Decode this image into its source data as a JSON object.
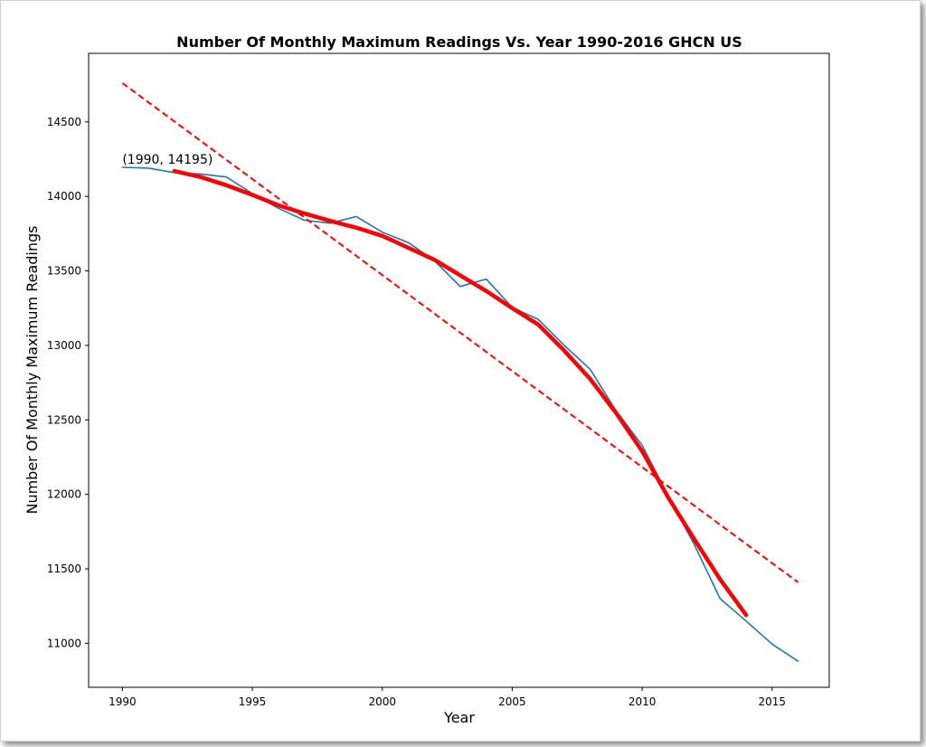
{
  "chart_data": {
    "type": "line",
    "title": "Number Of Monthly Maximum Readings Vs. Year 1990-2016 GHCN US",
    "xlabel": "Year",
    "ylabel": "Number Of Monthly Maximum Readings",
    "xlim": [
      1988.7,
      2017.2
    ],
    "ylim": [
      10705,
      14960
    ],
    "xticks": [
      1990,
      1995,
      2000,
      2005,
      2010,
      2015
    ],
    "yticks": [
      11000,
      11500,
      12000,
      12500,
      13000,
      13500,
      14000,
      14500
    ],
    "grid": false,
    "series": [
      {
        "color": "#1f77b4",
        "style": "solid",
        "x": [
          1990,
          1991,
          1992,
          1993,
          1994,
          1995,
          1996,
          1997,
          1998,
          1999,
          2000,
          2001,
          2002,
          2003,
          2004,
          2005,
          2006,
          2007,
          2008,
          2009,
          2010,
          2011,
          2012,
          2013,
          2014,
          2015,
          2016
        ],
        "y": [
          14195,
          14190,
          14160,
          14150,
          14130,
          14020,
          13920,
          13840,
          13820,
          13865,
          13760,
          13690,
          13570,
          13395,
          13445,
          13255,
          13175,
          13000,
          12840,
          12560,
          12330,
          11990,
          11665,
          11300,
          11150,
          10995,
          10880
        ]
      },
      {
        "color": "#ff0000",
        "style": "thick",
        "x": [
          1992,
          1993,
          1994,
          1995,
          1996,
          1997,
          1998,
          1999,
          2000,
          2001,
          2002,
          2003,
          2004,
          2005,
          2006,
          2007,
          2008,
          2009,
          2010,
          2011,
          2012,
          2013,
          2014
        ],
        "y": [
          14170,
          14130,
          14075,
          14010,
          13940,
          13885,
          13835,
          13790,
          13735,
          13655,
          13575,
          13470,
          13365,
          13250,
          13140,
          12965,
          12775,
          12545,
          12290,
          11980,
          11700,
          11430,
          11190
        ]
      },
      {
        "color": "#ff0000",
        "style": "dashed",
        "x": [
          1990,
          2016
        ],
        "y": [
          14760,
          11410
        ]
      }
    ],
    "annotations": [
      {
        "text": "(1990, 14195)",
        "x": 1990,
        "y": 14195
      }
    ]
  }
}
